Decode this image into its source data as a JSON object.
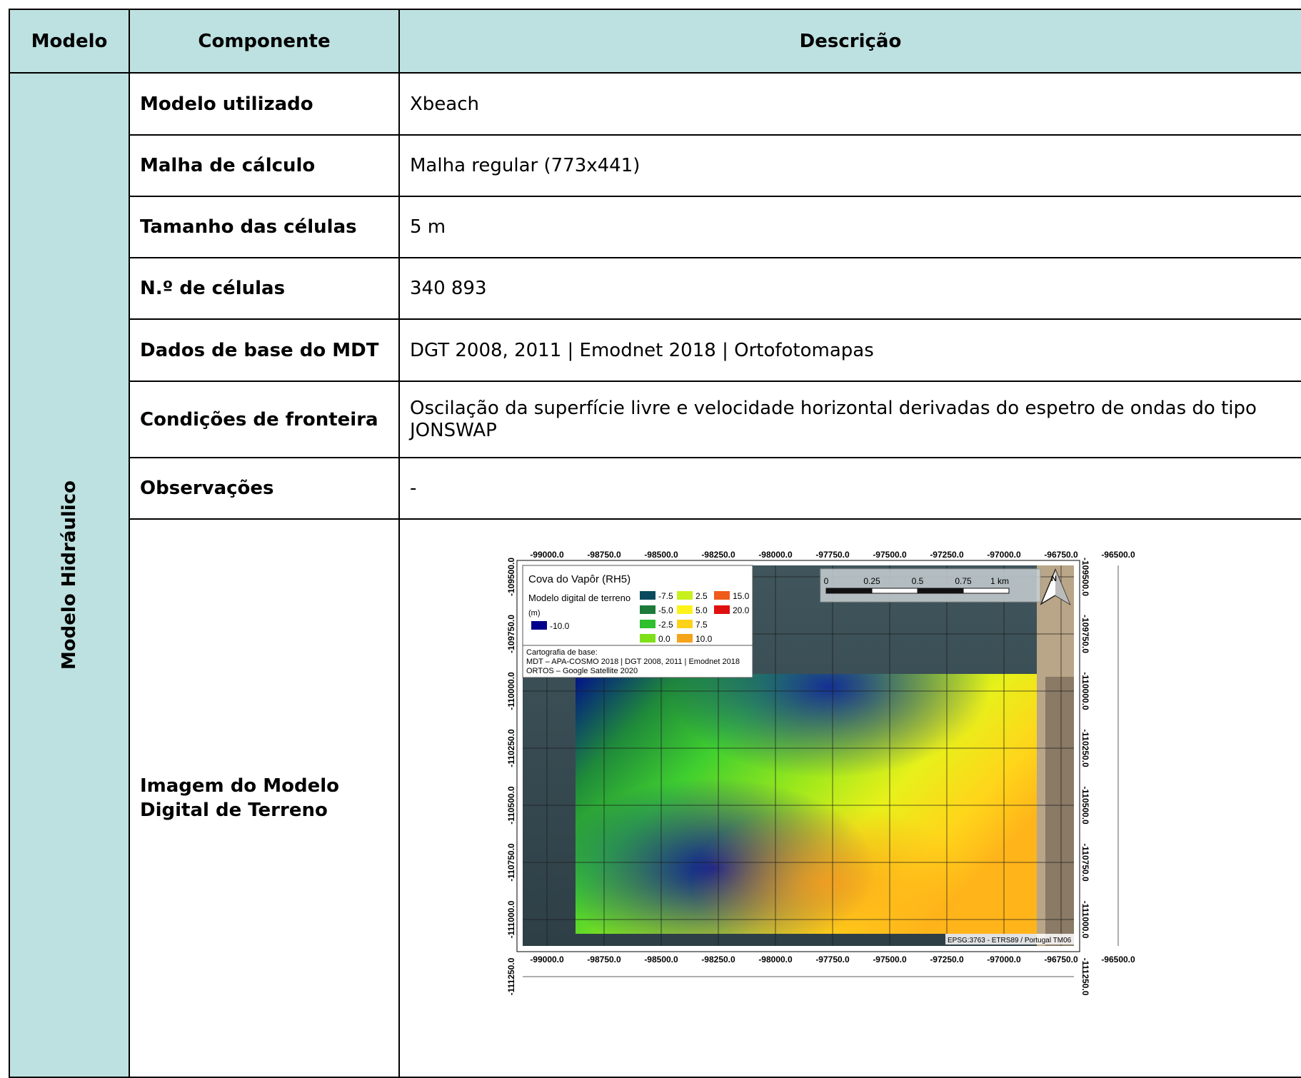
{
  "headers": {
    "modelo": "Modelo",
    "componente": "Componente",
    "descricao": "Descrição"
  },
  "group_label": "Modelo Hidráulico",
  "rows": [
    {
      "label": "Modelo utilizado",
      "value": "Xbeach"
    },
    {
      "label": "Malha de cálculo",
      "value": "Malha regular (773x441)"
    },
    {
      "label": "Tamanho das células",
      "value": "5 m"
    },
    {
      "label": "N.º de células",
      "value": "340 893"
    },
    {
      "label": "Dados de base do MDT",
      "value": "DGT 2008, 2011 | Emodnet 2018 | Ortofotomapas"
    },
    {
      "label": "Condições de fronteira",
      "value": "Oscilação da superfície livre e velocidade horizontal derivadas do espetro de ondas do tipo JONSWAP"
    },
    {
      "label": "Observações",
      "value": "-"
    }
  ],
  "image_row": {
    "label": "Imagem do Modelo Digital de Terreno"
  },
  "map": {
    "title": "Cova do Vapôr (RH5)",
    "legend_label": "Modelo digital de terreno",
    "legend_unit": "(m)",
    "legend_entries": [
      {
        "value": "-10.0",
        "color": "#00008b"
      },
      {
        "value": "-7.5",
        "color": "#0b4a5e"
      },
      {
        "value": "-5.0",
        "color": "#1e7a3a"
      },
      {
        "value": "-2.5",
        "color": "#2fbf2f"
      },
      {
        "value": "0.0",
        "color": "#7fe01a"
      },
      {
        "value": "2.5",
        "color": "#c8ef1e"
      },
      {
        "value": "5.0",
        "color": "#fff21a"
      },
      {
        "value": "7.5",
        "color": "#ffd21a"
      },
      {
        "value": "10.0",
        "color": "#f5a31a"
      },
      {
        "value": "15.0",
        "color": "#f05a1a"
      },
      {
        "value": "20.0",
        "color": "#e01010"
      }
    ],
    "base_title": "Cartografia de base:",
    "base_line1": "MDT – APA-COSMO 2018 | DGT 2008, 2011 | Emodnet 2018",
    "base_line2": "ORTOS – Google Satellite 2020",
    "x_ticks": [
      "-99000.0",
      "-98750.0",
      "-98500.0",
      "-98250.0",
      "-98000.0",
      "-97750.0",
      "-97500.0",
      "-97250.0",
      "-97000.0",
      "-96750.0",
      "-96500.0"
    ],
    "y_ticks": [
      "-109500.0",
      "-109750.0",
      "-110000.0",
      "-110250.0",
      "-110500.0",
      "-110750.0",
      "-111000.0",
      "-111250.0"
    ],
    "scale_labels": [
      "0",
      "0.25",
      "0.5",
      "0.75",
      "1 km"
    ],
    "north": "N",
    "crs": "EPSG:3763 - ETRS89 / Portugal TM06"
  }
}
